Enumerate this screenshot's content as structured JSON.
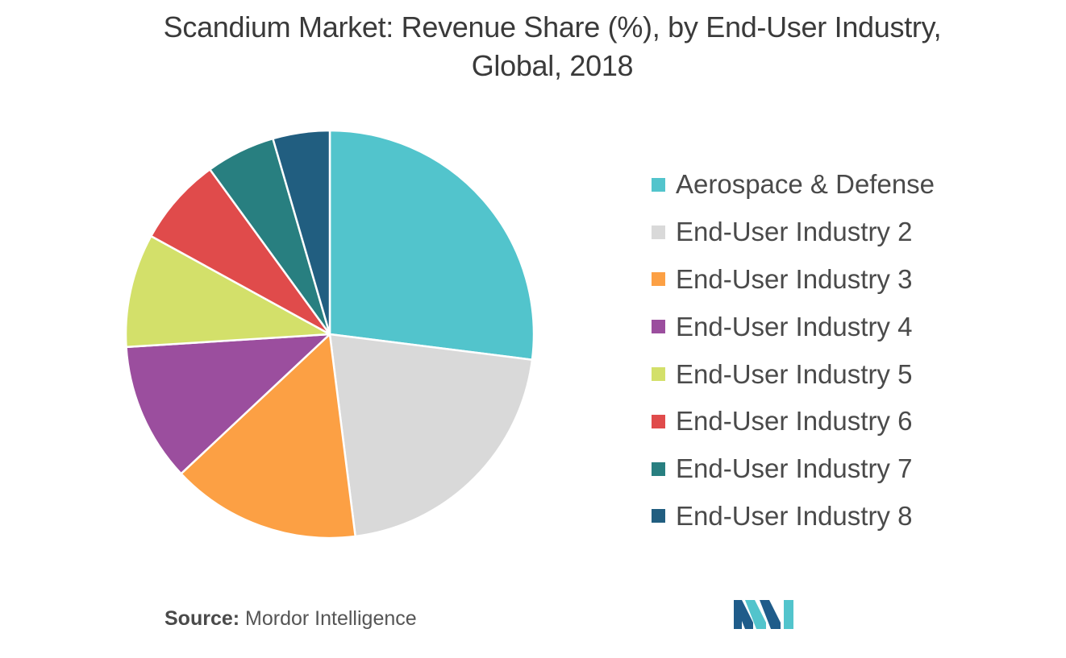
{
  "title_line1": "Scandium Market: Revenue Share (%), by End-User Industry,",
  "title_line2": "Global, 2018",
  "chart_data": {
    "type": "pie",
    "title": "Scandium Market: Revenue Share (%), by End-User Industry, Global, 2018",
    "start_angle": "12 o'clock",
    "direction": "clockwise",
    "legend_position": "right",
    "slices": [
      {
        "label": "Aerospace & Defense",
        "value": 27,
        "color": "#52C4CC"
      },
      {
        "label": "End-User Industry 2",
        "value": 21,
        "color": "#D9D9D9"
      },
      {
        "label": "End-User Industry 3",
        "value": 15,
        "color": "#FCA044"
      },
      {
        "label": "End-User Industry 4",
        "value": 11,
        "color": "#9B4E9E"
      },
      {
        "label": "End-User Industry 5",
        "value": 9,
        "color": "#D3E06A"
      },
      {
        "label": "End-User Industry 6",
        "value": 7,
        "color": "#E04B4B"
      },
      {
        "label": "End-User Industry 7",
        "value": 5.5,
        "color": "#287F80"
      },
      {
        "label": "End-User Industry 8",
        "value": 4.5,
        "color": "#215E80"
      }
    ]
  },
  "source": {
    "prefix": "Source:",
    "text": "Mordor Intelligence"
  },
  "logo": {
    "icon": "mordor-intelligence-logo",
    "colors": [
      "#1F5C8A",
      "#52C4CC"
    ]
  }
}
